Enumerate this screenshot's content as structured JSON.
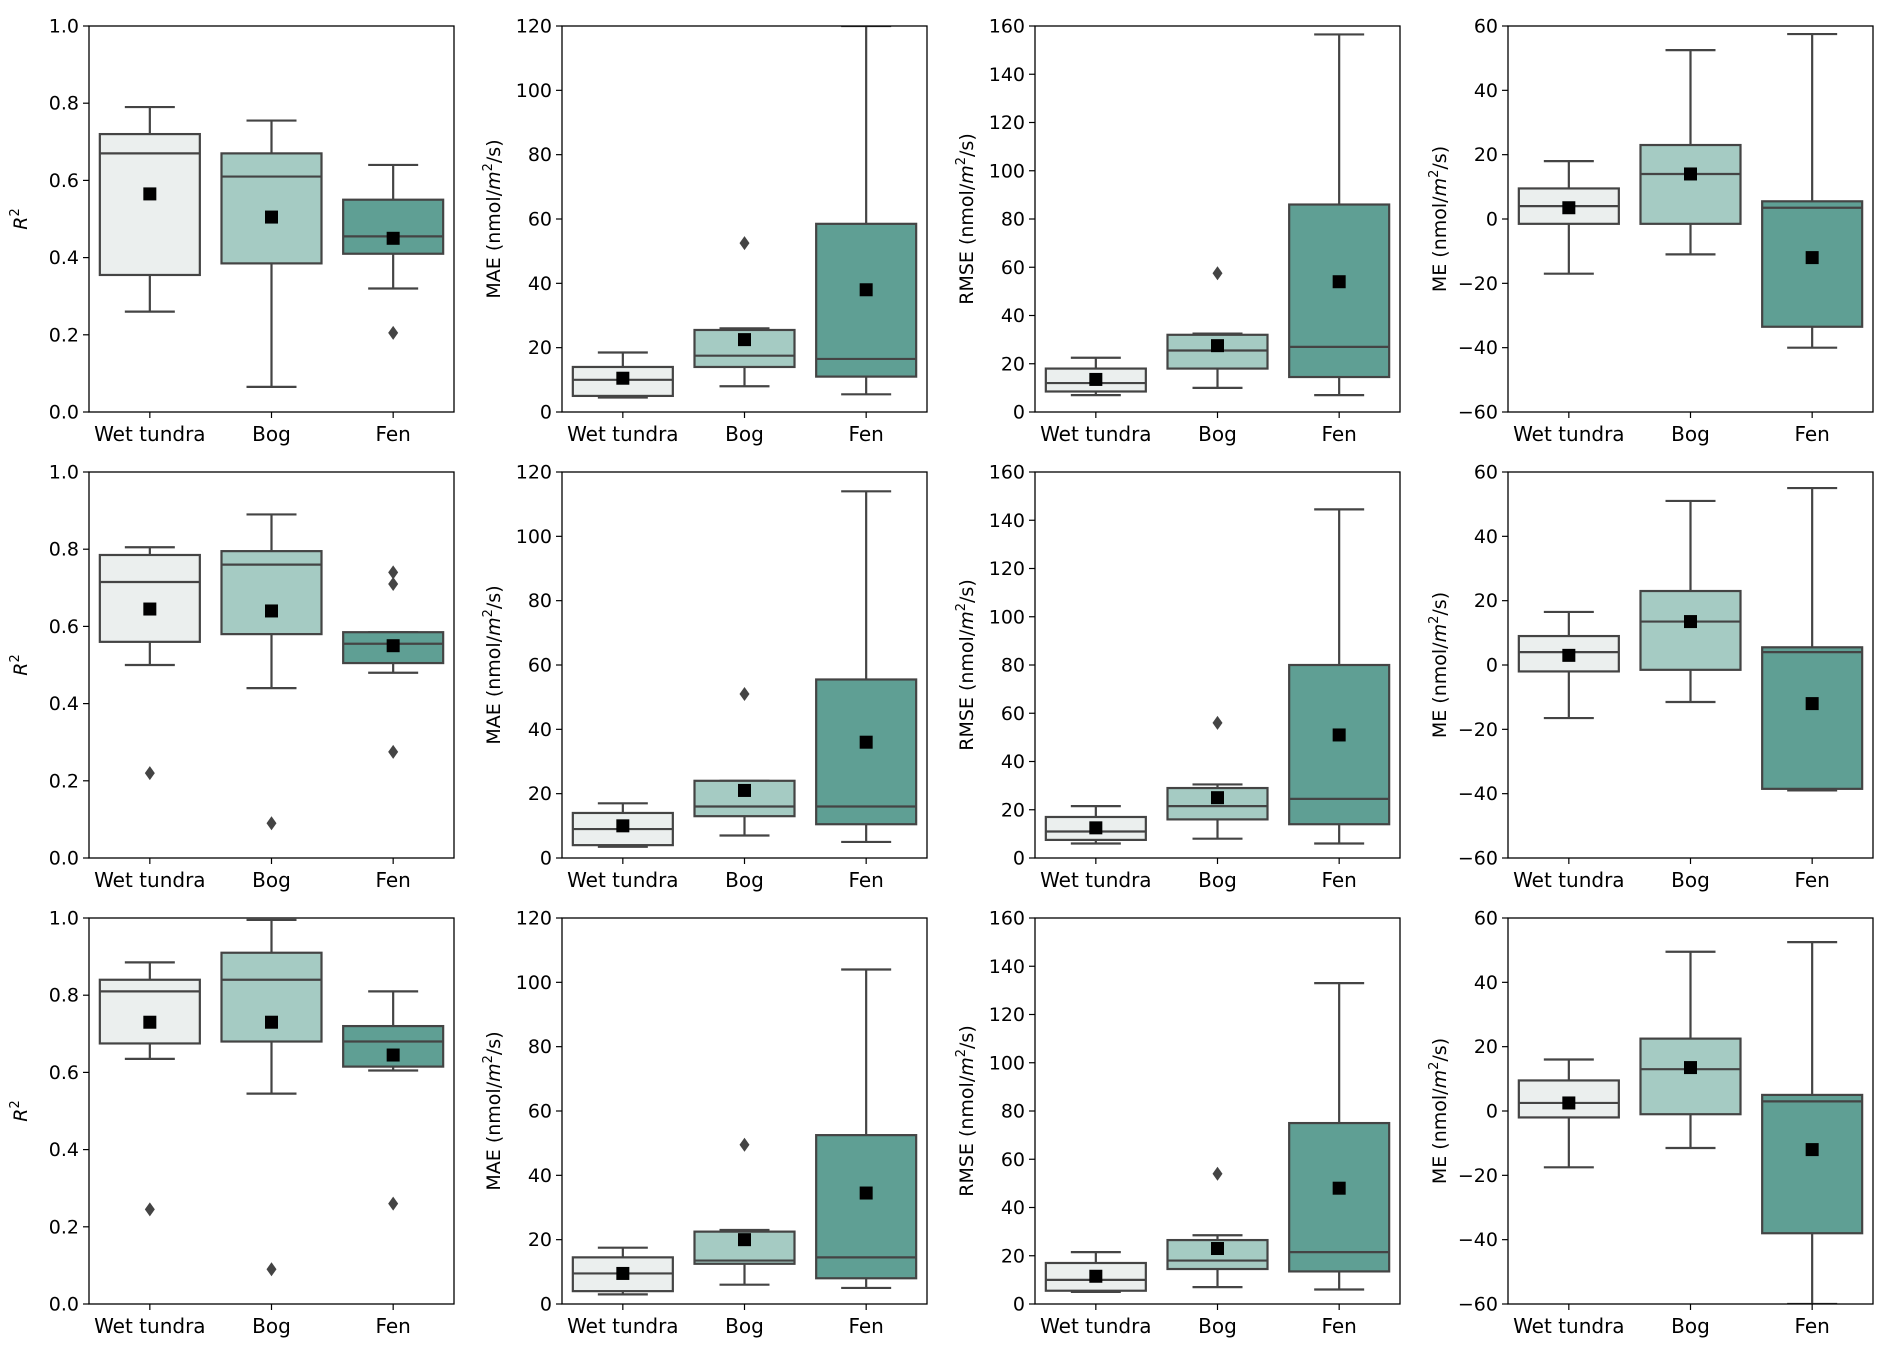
{
  "categories": [
    "Wet tundra",
    "Bog",
    "Fen"
  ],
  "colors": {
    "Wet tundra": "#ebefee",
    "Bog": "#a5cbc3",
    "Fen": "#5f9f94",
    "stroke": "#444444",
    "mean": "#000000"
  },
  "chart_data": [
    {
      "type": "box",
      "row": 1,
      "metric": "R2",
      "ylabel": "R²",
      "ylim": [
        0,
        1.0
      ],
      "yticks": [
        "0.0",
        "0.2",
        "0.4",
        "0.6",
        "0.8",
        "1.0"
      ],
      "boxes": [
        {
          "category": "Wet tundra",
          "whisker_low": 0.26,
          "q1": 0.355,
          "median": 0.67,
          "q3": 0.72,
          "whisker_high": 0.79,
          "mean": 0.565,
          "outliers": []
        },
        {
          "category": "Bog",
          "whisker_low": 0.065,
          "q1": 0.385,
          "median": 0.61,
          "q3": 0.67,
          "whisker_high": 0.755,
          "mean": 0.505,
          "outliers": []
        },
        {
          "category": "Fen",
          "whisker_low": 0.32,
          "q1": 0.41,
          "median": 0.455,
          "q3": 0.55,
          "whisker_high": 0.64,
          "mean": 0.45,
          "outliers": [
            0.205
          ]
        }
      ]
    },
    {
      "type": "box",
      "row": 1,
      "metric": "MAE",
      "ylabel": "MAE (nmol/m²/s)",
      "ylim": [
        0,
        120
      ],
      "yticks": [
        "0",
        "20",
        "40",
        "60",
        "80",
        "100",
        "120"
      ],
      "boxes": [
        {
          "category": "Wet tundra",
          "whisker_low": 4.5,
          "q1": 5,
          "median": 10,
          "q3": 14,
          "whisker_high": 18.5,
          "mean": 10.5,
          "outliers": []
        },
        {
          "category": "Bog",
          "whisker_low": 8,
          "q1": 14,
          "median": 17.5,
          "q3": 25.5,
          "whisker_high": 26,
          "mean": 22.5,
          "outliers": [
            52.5
          ]
        },
        {
          "category": "Fen",
          "whisker_low": 5.5,
          "q1": 11,
          "median": 16.5,
          "q3": 58.5,
          "whisker_high": 120,
          "mean": 38,
          "outliers": []
        }
      ]
    },
    {
      "type": "box",
      "row": 1,
      "metric": "RMSE",
      "ylabel": "RMSE (nmol/m²/s)",
      "ylim": [
        0,
        160
      ],
      "yticks": [
        "0",
        "20",
        "40",
        "60",
        "80",
        "100",
        "120",
        "140",
        "160"
      ],
      "boxes": [
        {
          "category": "Wet tundra",
          "whisker_low": 7,
          "q1": 8.5,
          "median": 12,
          "q3": 18,
          "whisker_high": 22.5,
          "mean": 13.5,
          "outliers": []
        },
        {
          "category": "Bog",
          "whisker_low": 10,
          "q1": 18,
          "median": 25.5,
          "q3": 32,
          "whisker_high": 32.5,
          "mean": 27.5,
          "outliers": [
            57.5
          ]
        },
        {
          "category": "Fen",
          "whisker_low": 7,
          "q1": 14.5,
          "median": 27,
          "q3": 86,
          "whisker_high": 156.5,
          "mean": 54,
          "outliers": []
        }
      ]
    },
    {
      "type": "box",
      "row": 1,
      "metric": "ME",
      "ylabel": "ME (nmol/m²/s)",
      "ylim": [
        -60,
        60
      ],
      "yticks": [
        "−60",
        "−40",
        "−20",
        "0",
        "20",
        "40",
        "60"
      ],
      "boxes": [
        {
          "category": "Wet tundra",
          "whisker_low": -17,
          "q1": -1.5,
          "median": 4,
          "q3": 9.5,
          "whisker_high": 18,
          "mean": 3.5,
          "outliers": []
        },
        {
          "category": "Bog",
          "whisker_low": -11,
          "q1": -1.5,
          "median": 14,
          "q3": 23,
          "whisker_high": 52.5,
          "mean": 14,
          "outliers": []
        },
        {
          "category": "Fen",
          "whisker_low": -40,
          "q1": -33.5,
          "median": 3.5,
          "q3": 5.5,
          "whisker_high": 57.5,
          "mean": -12,
          "outliers": []
        }
      ]
    },
    {
      "type": "box",
      "row": 2,
      "metric": "R2",
      "ylabel": "R²",
      "ylim": [
        0,
        1.0
      ],
      "yticks": [
        "0.0",
        "0.2",
        "0.4",
        "0.6",
        "0.8",
        "1.0"
      ],
      "boxes": [
        {
          "category": "Wet tundra",
          "whisker_low": 0.5,
          "q1": 0.56,
          "median": 0.715,
          "q3": 0.785,
          "whisker_high": 0.805,
          "mean": 0.645,
          "outliers": [
            0.22
          ]
        },
        {
          "category": "Bog",
          "whisker_low": 0.44,
          "q1": 0.58,
          "median": 0.76,
          "q3": 0.795,
          "whisker_high": 0.89,
          "mean": 0.64,
          "outliers": [
            0.09
          ]
        },
        {
          "category": "Fen",
          "whisker_low": 0.48,
          "q1": 0.505,
          "median": 0.555,
          "q3": 0.585,
          "whisker_high": 0.585,
          "mean": 0.55,
          "outliers": [
            0.275,
            0.71,
            0.74
          ]
        }
      ]
    },
    {
      "type": "box",
      "row": 2,
      "metric": "MAE",
      "ylabel": "MAE (nmol/m²/s)",
      "ylim": [
        0,
        120
      ],
      "yticks": [
        "0",
        "20",
        "40",
        "60",
        "80",
        "100",
        "120"
      ],
      "boxes": [
        {
          "category": "Wet tundra",
          "whisker_low": 3.5,
          "q1": 4,
          "median": 9,
          "q3": 14,
          "whisker_high": 17,
          "mean": 10,
          "outliers": []
        },
        {
          "category": "Bog",
          "whisker_low": 7,
          "q1": 13,
          "median": 16,
          "q3": 24,
          "whisker_high": 24,
          "mean": 21,
          "outliers": [
            51
          ]
        },
        {
          "category": "Fen",
          "whisker_low": 5,
          "q1": 10.5,
          "median": 16,
          "q3": 55.5,
          "whisker_high": 114,
          "mean": 36,
          "outliers": []
        }
      ]
    },
    {
      "type": "box",
      "row": 2,
      "metric": "RMSE",
      "ylabel": "RMSE (nmol/m²/s)",
      "ylim": [
        0,
        160
      ],
      "yticks": [
        "0",
        "20",
        "40",
        "60",
        "80",
        "100",
        "120",
        "140",
        "160"
      ],
      "boxes": [
        {
          "category": "Wet tundra",
          "whisker_low": 6,
          "q1": 7.5,
          "median": 11,
          "q3": 17,
          "whisker_high": 21.5,
          "mean": 12.5,
          "outliers": []
        },
        {
          "category": "Bog",
          "whisker_low": 8,
          "q1": 16,
          "median": 21.5,
          "q3": 29,
          "whisker_high": 30.5,
          "mean": 25,
          "outliers": [
            56
          ]
        },
        {
          "category": "Fen",
          "whisker_low": 6,
          "q1": 14,
          "median": 24.5,
          "q3": 80,
          "whisker_high": 144.5,
          "mean": 51,
          "outliers": []
        }
      ]
    },
    {
      "type": "box",
      "row": 2,
      "metric": "ME",
      "ylabel": "ME (nmol/m²/s)",
      "ylim": [
        -60,
        60
      ],
      "yticks": [
        "−60",
        "−40",
        "−20",
        "0",
        "20",
        "40",
        "60"
      ],
      "boxes": [
        {
          "category": "Wet tundra",
          "whisker_low": -16.5,
          "q1": -2,
          "median": 4,
          "q3": 9,
          "whisker_high": 16.5,
          "mean": 3,
          "outliers": []
        },
        {
          "category": "Bog",
          "whisker_low": -11.5,
          "q1": -1.5,
          "median": 13.5,
          "q3": 23,
          "whisker_high": 51,
          "mean": 13.5,
          "outliers": []
        },
        {
          "category": "Fen",
          "whisker_low": -39,
          "q1": -38.5,
          "median": 4,
          "q3": 5.5,
          "whisker_high": 55,
          "mean": -12,
          "outliers": []
        }
      ]
    },
    {
      "type": "box",
      "row": 3,
      "metric": "R2",
      "ylabel": "R²",
      "ylim": [
        0,
        1.0
      ],
      "yticks": [
        "0.0",
        "0.2",
        "0.4",
        "0.6",
        "0.8",
        "1.0"
      ],
      "boxes": [
        {
          "category": "Wet tundra",
          "whisker_low": 0.635,
          "q1": 0.675,
          "median": 0.81,
          "q3": 0.84,
          "whisker_high": 0.885,
          "mean": 0.73,
          "outliers": [
            0.245
          ]
        },
        {
          "category": "Bog",
          "whisker_low": 0.545,
          "q1": 0.68,
          "median": 0.84,
          "q3": 0.91,
          "whisker_high": 0.995,
          "mean": 0.73,
          "outliers": [
            0.09
          ]
        },
        {
          "category": "Fen",
          "whisker_low": 0.605,
          "q1": 0.615,
          "median": 0.68,
          "q3": 0.72,
          "whisker_high": 0.81,
          "mean": 0.645,
          "outliers": [
            0.26
          ]
        }
      ]
    },
    {
      "type": "box",
      "row": 3,
      "metric": "MAE",
      "ylabel": "MAE (nmol/m²/s)",
      "ylim": [
        0,
        120
      ],
      "yticks": [
        "0",
        "20",
        "40",
        "60",
        "80",
        "100",
        "120"
      ],
      "boxes": [
        {
          "category": "Wet tundra",
          "whisker_low": 3,
          "q1": 4,
          "median": 9.5,
          "q3": 14.5,
          "whisker_high": 17.5,
          "mean": 9.5,
          "outliers": []
        },
        {
          "category": "Bog",
          "whisker_low": 6,
          "q1": 12.5,
          "median": 13.5,
          "q3": 22.5,
          "whisker_high": 23,
          "mean": 20,
          "outliers": [
            49.5
          ]
        },
        {
          "category": "Fen",
          "whisker_low": 5,
          "q1": 8,
          "median": 14.5,
          "q3": 52.5,
          "whisker_high": 104,
          "mean": 34.5,
          "outliers": []
        }
      ]
    },
    {
      "type": "box",
      "row": 3,
      "metric": "RMSE",
      "ylabel": "RMSE (nmol/m²/s)",
      "ylim": [
        0,
        160
      ],
      "yticks": [
        "0",
        "20",
        "40",
        "60",
        "80",
        "100",
        "120",
        "140",
        "160"
      ],
      "boxes": [
        {
          "category": "Wet tundra",
          "whisker_low": 5,
          "q1": 5.5,
          "median": 10,
          "q3": 17,
          "whisker_high": 21.5,
          "mean": 11.5,
          "outliers": []
        },
        {
          "category": "Bog",
          "whisker_low": 7,
          "q1": 14.5,
          "median": 18,
          "q3": 26.5,
          "whisker_high": 28.5,
          "mean": 23,
          "outliers": [
            54
          ]
        },
        {
          "category": "Fen",
          "whisker_low": 6,
          "q1": 13.5,
          "median": 21.5,
          "q3": 75,
          "whisker_high": 133,
          "mean": 48,
          "outliers": []
        }
      ]
    },
    {
      "type": "box",
      "row": 3,
      "metric": "ME",
      "ylabel": "ME (nmol/m²/s)",
      "ylim": [
        -60,
        60
      ],
      "yticks": [
        "−60",
        "−40",
        "−20",
        "0",
        "20",
        "40",
        "60"
      ],
      "boxes": [
        {
          "category": "Wet tundra",
          "whisker_low": -17.5,
          "q1": -2,
          "median": 2.5,
          "q3": 9.5,
          "whisker_high": 16,
          "mean": 2.5,
          "outliers": []
        },
        {
          "category": "Bog",
          "whisker_low": -11.5,
          "q1": -1,
          "median": 13,
          "q3": 22.5,
          "whisker_high": 49.5,
          "mean": 13.5,
          "outliers": []
        },
        {
          "category": "Fen",
          "whisker_low": -60,
          "q1": -38,
          "median": 3,
          "q3": 5,
          "whisker_high": 52.5,
          "mean": -12,
          "outliers": []
        }
      ]
    }
  ]
}
